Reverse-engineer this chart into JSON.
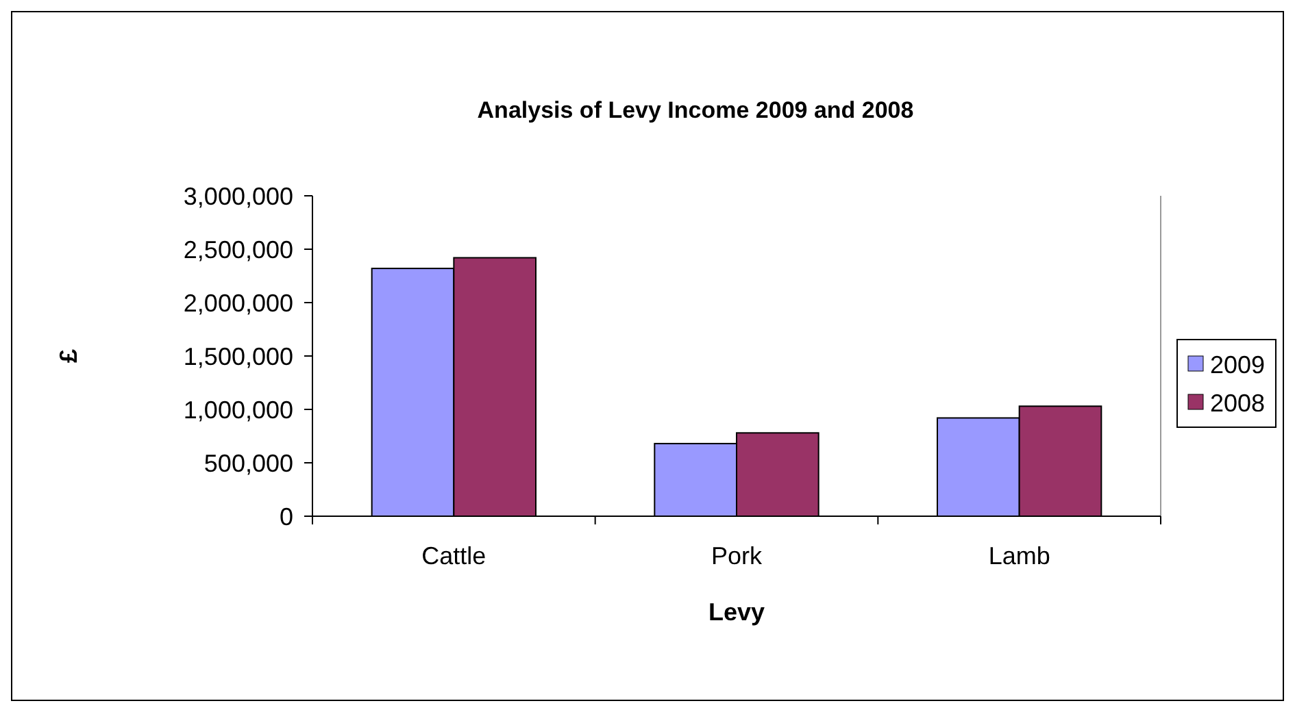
{
  "chart_data": {
    "type": "bar",
    "title": "Analysis of Levy Income 2009 and 2008",
    "xlabel": "Levy",
    "ylabel": "£",
    "categories": [
      "Cattle",
      "Pork",
      "Lamb"
    ],
    "series": [
      {
        "name": "2009",
        "color": "#9999ff",
        "values": [
          2320000,
          680000,
          920000
        ]
      },
      {
        "name": "2008",
        "color": "#993366",
        "values": [
          2420000,
          780000,
          1030000
        ]
      }
    ],
    "ylim": [
      0,
      3000000
    ],
    "yticks": [
      {
        "value": 0,
        "label": "0"
      },
      {
        "value": 500000,
        "label": "500,000"
      },
      {
        "value": 1000000,
        "label": "1,000,000"
      },
      {
        "value": 1500000,
        "label": "1,500,000"
      },
      {
        "value": 2000000,
        "label": "2,000,000"
      },
      {
        "value": 2500000,
        "label": "2,500,000"
      },
      {
        "value": 3000000,
        "label": "3,000,000"
      }
    ],
    "legend": "right"
  }
}
